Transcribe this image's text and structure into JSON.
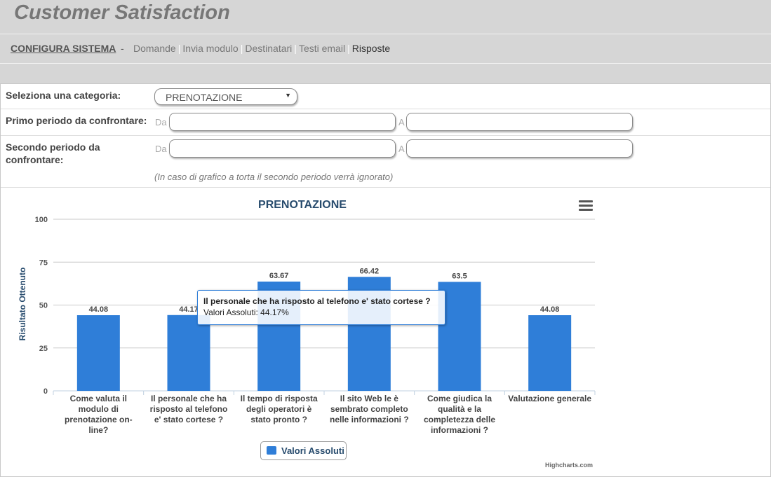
{
  "app": {
    "title": "Customer Satisfaction"
  },
  "nav": {
    "config_label": "CONFIGURA SISTEMA",
    "dash": "-",
    "separator": "|",
    "links": [
      "Domande",
      "Invia modulo",
      "Destinatari",
      "Testi email",
      "Risposte"
    ],
    "active": "Risposte"
  },
  "form": {
    "category_label": "Seleziona una categoria:",
    "category_value": "PRENOTAZIONE",
    "period1_label": "Primo periodo da confrontare:",
    "period2_label": "Secondo periodo da confrontare:",
    "from_label": "Da",
    "to_label": "A",
    "note": "(In caso di grafico a torta il secondo periodo verrà ignorato)"
  },
  "chart_data": {
    "type": "bar",
    "title": "PRENOTAZIONE",
    "ylabel": "Risultato Ottenuto",
    "ylim": [
      0,
      100
    ],
    "yticks": [
      0,
      25,
      50,
      75,
      100
    ],
    "grid": true,
    "color": "#2f7ed8",
    "categories": [
      "Come valuta il modulo di prenotazione on-line?",
      "Il personale che ha risposto al telefono e' stato cortese ?",
      "Il tempo di risposta degli operatori è stato pronto ?",
      "Il sito Web le è sembrato completo nelle informazioni ?",
      "Come giudica la qualità e la completezza delle informazioni ?",
      "Valutazione generale"
    ],
    "series": [
      {
        "name": "Valori Assoluti",
        "values": [
          44.08,
          44.17,
          63.67,
          66.42,
          63.5,
          44.08
        ]
      }
    ],
    "data_labels": [
      "44.08",
      "44.17",
      "63.67",
      "66.42",
      "63.5",
      "44.08"
    ],
    "legend": {
      "position": "bottom-center",
      "label": "Valori Assoluti"
    },
    "tooltip": {
      "title": "Il personale che ha risposto al telefono e' stato cortese ?",
      "line": "Valori Assoluti: 44.17%"
    },
    "credits": "Highcharts.com",
    "menu_icon": "hamburger-icon"
  }
}
